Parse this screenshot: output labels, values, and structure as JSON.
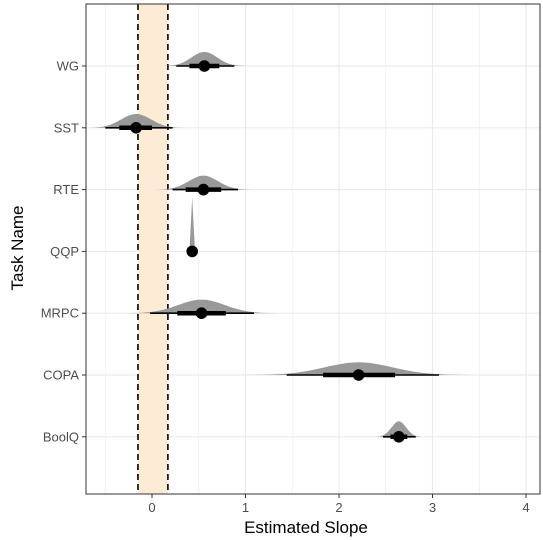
{
  "chart_data": {
    "type": "scatter",
    "xlabel": "Estimated Slope",
    "ylabel": "Task Name",
    "xlim": [
      -0.72,
      4.2
    ],
    "x_ticks": [
      "0",
      "1",
      "2",
      "3",
      "4"
    ],
    "y_categories": [
      "WG",
      "SST",
      "RTE",
      "QQP",
      "MRPC",
      "COPA",
      "BoolQ"
    ],
    "reference_lines": [
      -0.15,
      0.17
    ],
    "reference_band": [
      -0.15,
      0.17
    ],
    "grid": true,
    "series": [
      {
        "values": [
          {
            "task": "WG",
            "point": 0.56,
            "inner": [
              0.4,
              0.72
            ],
            "outer": [
              0.26,
              0.88
            ],
            "spread": 0.32
          },
          {
            "task": "SST",
            "point": -0.17,
            "inner": [
              -0.35,
              0.0
            ],
            "outer": [
              -0.5,
              0.22
            ],
            "spread": 0.36
          },
          {
            "task": "RTE",
            "point": 0.55,
            "inner": [
              0.36,
              0.74
            ],
            "outer": [
              0.22,
              0.92
            ],
            "spread": 0.34
          },
          {
            "task": "QQP",
            "point": 0.43,
            "inner": [
              0.41,
              0.45
            ],
            "outer": [
              0.4,
              0.46
            ],
            "spread": 0.02
          },
          {
            "task": "MRPC",
            "point": 0.53,
            "inner": [
              0.27,
              0.79
            ],
            "outer": [
              -0.02,
              1.09
            ],
            "spread": 0.4
          },
          {
            "task": "COPA",
            "point": 2.21,
            "inner": [
              1.83,
              2.6
            ],
            "outer": [
              1.44,
              3.07
            ],
            "spread": 0.55
          },
          {
            "task": "BoolQ",
            "point": 2.64,
            "inner": [
              2.55,
              2.73
            ],
            "outer": [
              2.47,
              2.82
            ],
            "spread": 0.09
          }
        ]
      }
    ],
    "colors": {
      "band": "#fdebd6",
      "grid": "#ebebeb",
      "density": "#999999",
      "interval": "#000000",
      "reference": "#000000"
    }
  }
}
